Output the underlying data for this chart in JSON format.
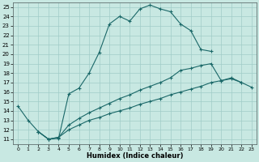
{
  "xlabel": "Humidex (Indice chaleur)",
  "background_color": "#c8e8e2",
  "grid_color": "#a0ccc8",
  "line_color": "#1a6868",
  "xlim": [
    -0.5,
    23.5
  ],
  "ylim": [
    10.5,
    25.5
  ],
  "xticks": [
    0,
    1,
    2,
    3,
    4,
    5,
    6,
    7,
    8,
    9,
    10,
    11,
    12,
    13,
    14,
    15,
    16,
    17,
    18,
    19,
    20,
    21,
    22,
    23
  ],
  "yticks": [
    11,
    12,
    13,
    14,
    15,
    16,
    17,
    18,
    19,
    20,
    21,
    22,
    23,
    24,
    25
  ],
  "curve1_x": [
    0,
    1,
    2,
    3,
    4,
    5,
    6,
    7,
    8,
    9,
    10,
    11,
    12,
    13,
    14,
    15,
    16,
    17,
    18,
    19
  ],
  "curve1_y": [
    14.5,
    13.0,
    11.8,
    11.0,
    11.1,
    15.8,
    16.4,
    18.0,
    20.2,
    23.2,
    24.0,
    23.5,
    24.8,
    25.2,
    24.8,
    24.5,
    23.2,
    22.5,
    20.5,
    20.3
  ],
  "curve2_x": [
    2,
    3,
    4,
    5,
    6,
    7,
    8,
    9,
    10,
    11,
    12,
    13,
    14,
    15,
    16,
    17,
    18,
    19,
    20,
    21,
    22
  ],
  "curve2_y": [
    11.8,
    11.0,
    11.2,
    12.5,
    13.2,
    13.8,
    14.3,
    14.8,
    15.3,
    15.7,
    16.2,
    16.6,
    17.0,
    17.5,
    18.3,
    18.5,
    18.8,
    19.0,
    17.2,
    17.5,
    17.0
  ],
  "curve3_x": [
    2,
    3,
    4,
    5,
    6,
    7,
    8,
    9,
    10,
    11,
    12,
    13,
    14,
    15,
    16,
    17,
    18,
    19,
    20,
    21,
    22,
    23
  ],
  "curve3_y": [
    11.8,
    11.0,
    11.2,
    12.0,
    12.5,
    13.0,
    13.3,
    13.7,
    14.0,
    14.3,
    14.7,
    15.0,
    15.3,
    15.7,
    16.0,
    16.3,
    16.6,
    17.0,
    17.2,
    17.4,
    17.0,
    16.5
  ]
}
